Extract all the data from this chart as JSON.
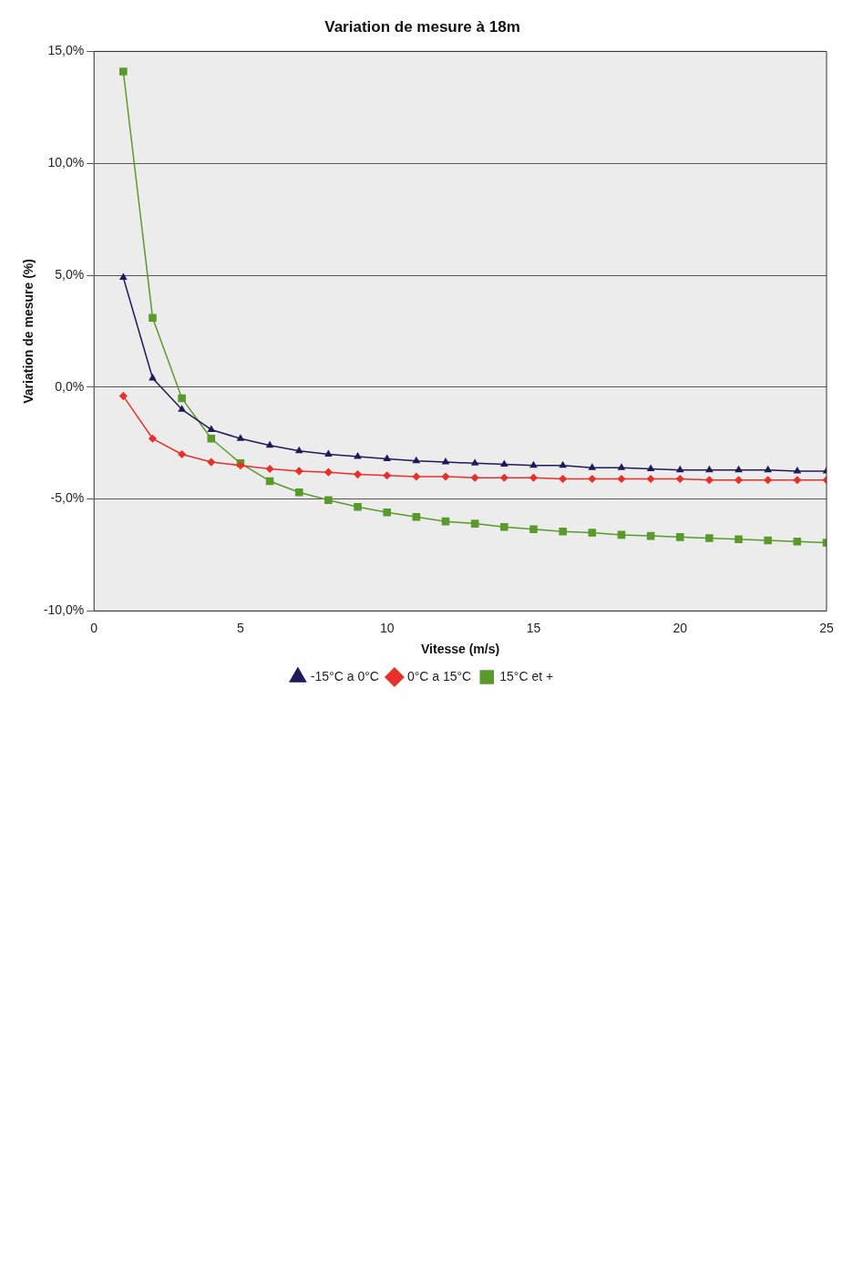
{
  "chart_data": {
    "type": "line",
    "title": "Variation de mesure à 18m",
    "xlabel": "Vitesse (m/s)",
    "ylabel": "Variation de mesure (%)",
    "x": [
      1,
      2,
      3,
      4,
      5,
      6,
      7,
      8,
      9,
      10,
      11,
      12,
      13,
      14,
      15,
      16,
      17,
      18,
      19,
      20,
      21,
      22,
      23,
      24,
      25
    ],
    "xlim": [
      0,
      25
    ],
    "xticks": [
      0,
      5,
      10,
      15,
      20,
      25
    ],
    "ylim": [
      -10,
      15
    ],
    "yticks": [
      {
        "value": -10,
        "label": "-10,0%"
      },
      {
        "value": -5,
        "label": "-5,0%"
      },
      {
        "value": 0,
        "label": "0,0%"
      },
      {
        "value": 5,
        "label": "5,0%"
      },
      {
        "value": 10,
        "label": "10,0%"
      },
      {
        "value": 15,
        "label": "15,0%"
      }
    ],
    "grid": "y",
    "legend": "bottom",
    "series": [
      {
        "name": "-15°C a 0°C",
        "color": "#1f1a5a",
        "marker": "triangle",
        "values": [
          4.9,
          0.4,
          -1.0,
          -1.9,
          -2.3,
          -2.6,
          -2.85,
          -3.0,
          -3.1,
          -3.2,
          -3.3,
          -3.35,
          -3.4,
          -3.45,
          -3.5,
          -3.5,
          -3.6,
          -3.6,
          -3.65,
          -3.7,
          -3.7,
          -3.7,
          -3.7,
          -3.75,
          -3.75
        ]
      },
      {
        "name": "0°C a 15°C",
        "color": "#e8302a",
        "marker": "diamond",
        "values": [
          -0.4,
          -2.3,
          -3.0,
          -3.35,
          -3.5,
          -3.65,
          -3.75,
          -3.8,
          -3.9,
          -3.95,
          -4.0,
          -4.0,
          -4.05,
          -4.05,
          -4.05,
          -4.1,
          -4.1,
          -4.1,
          -4.1,
          -4.1,
          -4.15,
          -4.15,
          -4.15,
          -4.15,
          -4.15
        ]
      },
      {
        "name": "15°C et +",
        "color": "#5a9a2a",
        "marker": "square",
        "values": [
          14.1,
          3.1,
          -0.5,
          -2.3,
          -3.4,
          -4.2,
          -4.7,
          -5.05,
          -5.35,
          -5.6,
          -5.8,
          -6.0,
          -6.1,
          -6.25,
          -6.35,
          -6.45,
          -6.5,
          -6.6,
          -6.65,
          -6.7,
          -6.75,
          -6.8,
          -6.85,
          -6.9,
          -6.95
        ]
      }
    ]
  }
}
